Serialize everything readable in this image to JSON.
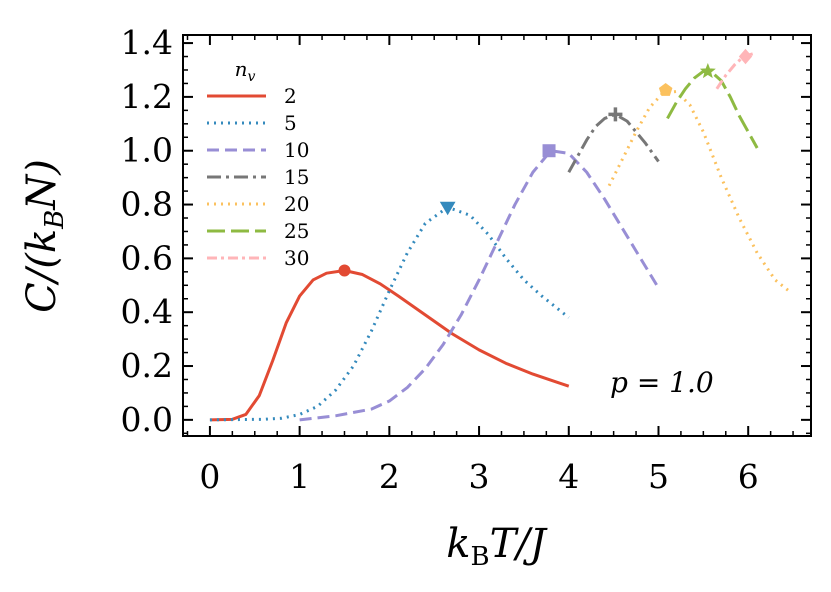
{
  "chart_data": {
    "type": "line",
    "xlabel": "kBT/J",
    "ylabel": "C/(kBN)",
    "xlim": [
      -0.3,
      6.7
    ],
    "ylim": [
      -0.06,
      1.43
    ],
    "x_ticks": [
      0,
      1,
      2,
      3,
      4,
      5,
      6
    ],
    "x_tick_labels": [
      "0",
      "1",
      "2",
      "3",
      "4",
      "5",
      "6"
    ],
    "y_ticks": [
      0.0,
      0.2,
      0.4,
      0.6,
      0.8,
      1.0,
      1.2,
      1.4
    ],
    "y_tick_labels": [
      "0.0",
      "0.2",
      "0.4",
      "0.6",
      "0.8",
      "1.0",
      "1.2",
      "1.4"
    ],
    "legend_title": "n_v",
    "legend_position": "top-left",
    "annotation": "p = 1.0",
    "series": [
      {
        "name": "2",
        "color": "#E24A33",
        "dash": "solid",
        "marker": "circle",
        "x": [
          0,
          0.25,
          0.4,
          0.55,
          0.7,
          0.85,
          1.0,
          1.15,
          1.3,
          1.5,
          1.7,
          1.9,
          2.1,
          2.4,
          2.7,
          3.0,
          3.3,
          3.6,
          4.0
        ],
        "y": [
          0,
          0.002,
          0.02,
          0.09,
          0.22,
          0.36,
          0.46,
          0.52,
          0.545,
          0.555,
          0.54,
          0.505,
          0.46,
          0.39,
          0.32,
          0.26,
          0.21,
          0.17,
          0.125
        ],
        "peak": [
          1.5,
          0.555
        ]
      },
      {
        "name": "5",
        "color": "#348ABD",
        "dash": "dot",
        "marker": "triangle-down",
        "x": [
          0,
          0.6,
          0.8,
          1.0,
          1.2,
          1.4,
          1.6,
          1.8,
          2.0,
          2.2,
          2.4,
          2.65,
          2.9,
          3.1,
          3.3,
          3.5,
          3.7,
          4.0
        ],
        "y": [
          0,
          0.002,
          0.006,
          0.02,
          0.05,
          0.11,
          0.2,
          0.33,
          0.48,
          0.62,
          0.73,
          0.79,
          0.76,
          0.69,
          0.6,
          0.52,
          0.46,
          0.38
        ],
        "peak": [
          2.65,
          0.79
        ]
      },
      {
        "name": "10",
        "color": "#988ED5",
        "dash": "dash",
        "marker": "square",
        "x": [
          1.0,
          1.4,
          1.8,
          2.0,
          2.2,
          2.4,
          2.6,
          2.8,
          3.0,
          3.2,
          3.4,
          3.6,
          3.8,
          4.0,
          4.2,
          4.4,
          4.6,
          4.8,
          5.0
        ],
        "y": [
          0,
          0.015,
          0.04,
          0.07,
          0.12,
          0.19,
          0.28,
          0.39,
          0.52,
          0.66,
          0.8,
          0.92,
          1.0,
          0.99,
          0.92,
          0.82,
          0.71,
          0.6,
          0.49
        ],
        "peak": [
          3.78,
          1.0
        ]
      },
      {
        "name": "15",
        "color": "#777777",
        "dash": "dashdot",
        "marker": "plus",
        "x": [
          4.0,
          4.1,
          4.2,
          4.3,
          4.4,
          4.52,
          4.65,
          4.75,
          4.85,
          5.0
        ],
        "y": [
          0.92,
          0.98,
          1.04,
          1.09,
          1.12,
          1.135,
          1.11,
          1.07,
          1.03,
          0.96
        ],
        "peak": [
          4.52,
          1.135
        ]
      },
      {
        "name": "20",
        "color": "#FBC15E",
        "dash": "dot",
        "marker": "pentagon",
        "x": [
          4.45,
          4.6,
          4.75,
          4.9,
          5.05,
          5.2,
          5.35,
          5.5,
          5.7,
          5.9,
          6.1,
          6.3,
          6.45
        ],
        "y": [
          0.87,
          0.97,
          1.07,
          1.16,
          1.215,
          1.22,
          1.17,
          1.07,
          0.9,
          0.75,
          0.62,
          0.52,
          0.48
        ],
        "peak": [
          5.08,
          1.225
        ]
      },
      {
        "name": "25",
        "color": "#8EBA42",
        "dash": "longdash",
        "marker": "star",
        "x": [
          5.1,
          5.2,
          5.3,
          5.4,
          5.5,
          5.6,
          5.7,
          5.8,
          5.9,
          6.0,
          6.1
        ],
        "y": [
          1.12,
          1.18,
          1.23,
          1.27,
          1.295,
          1.29,
          1.26,
          1.2,
          1.13,
          1.07,
          1.01
        ],
        "peak": [
          5.55,
          1.295
        ]
      },
      {
        "name": "30",
        "color": "#FFB5B8",
        "dash": "dashdot2",
        "marker": "diamond",
        "x": [
          5.65,
          5.75,
          5.85,
          5.95,
          6.05
        ],
        "y": [
          1.23,
          1.28,
          1.32,
          1.35,
          1.36
        ],
        "peak": [
          5.97,
          1.35
        ]
      }
    ]
  }
}
